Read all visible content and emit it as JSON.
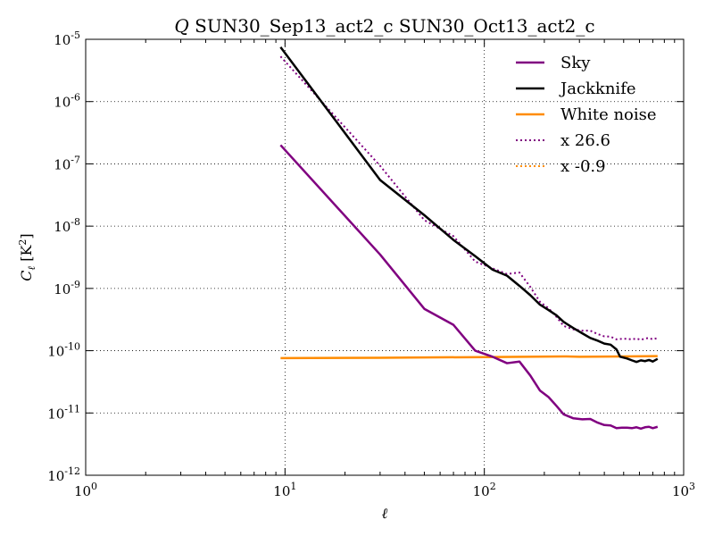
{
  "chart_data": {
    "type": "line",
    "title_prefix": "Q",
    "title_rest": " SUN30_Sep13_act2_c SUN30_Oct13_act2_c",
    "xlabel": "ℓ",
    "ylabel_main": "C",
    "ylabel_sub": "ℓ",
    "ylabel_unit": " [K",
    "ylabel_unit_sup": "2",
    "ylabel_unit_close": "]",
    "x_scale": "log",
    "y_scale": "log",
    "xlim": [
      1,
      1000
    ],
    "ylim": [
      1e-12,
      1e-05
    ],
    "grid": true,
    "legend_position": "top-right",
    "x_ticks": [
      {
        "base": "10",
        "exp": "0",
        "value": 1
      },
      {
        "base": "10",
        "exp": "1",
        "value": 10
      },
      {
        "base": "10",
        "exp": "2",
        "value": 100
      },
      {
        "base": "10",
        "exp": "3",
        "value": 1000
      }
    ],
    "y_ticks": [
      {
        "base": "10",
        "exp": "-12",
        "value": 1e-12
      },
      {
        "base": "10",
        "exp": "-11",
        "value": 1e-11
      },
      {
        "base": "10",
        "exp": "-10",
        "value": 1e-10
      },
      {
        "base": "10",
        "exp": "-9",
        "value": 1e-09
      },
      {
        "base": "10",
        "exp": "-8",
        "value": 1e-08
      },
      {
        "base": "10",
        "exp": "-7",
        "value": 1e-07
      },
      {
        "base": "10",
        "exp": "-6",
        "value": 1e-06
      },
      {
        "base": "10",
        "exp": "-5",
        "value": 1e-05
      }
    ],
    "series": [
      {
        "name": "Sky",
        "color": "#800080",
        "style": "solid",
        "points": [
          [
            9.5,
            2e-07
          ],
          [
            30,
            3.5e-09
          ],
          [
            50,
            4.7e-10
          ],
          [
            70,
            2.6e-10
          ],
          [
            90,
            1e-10
          ],
          [
            110,
            8e-11
          ],
          [
            130,
            6.3e-11
          ],
          [
            150,
            6.7e-11
          ],
          [
            170,
            4e-11
          ],
          [
            190,
            2.3e-11
          ],
          [
            210,
            1.8e-11
          ],
          [
            230,
            1.3e-11
          ],
          [
            250,
            9.5e-12
          ],
          [
            280,
            8.2e-12
          ],
          [
            310,
            7.9e-12
          ],
          [
            340,
            8e-12
          ],
          [
            370,
            7e-12
          ],
          [
            400,
            6.4e-12
          ],
          [
            430,
            6.3e-12
          ],
          [
            460,
            5.7e-12
          ],
          [
            490,
            5.8e-12
          ],
          [
            520,
            5.8e-12
          ],
          [
            550,
            5.7e-12
          ],
          [
            580,
            5.9e-12
          ],
          [
            610,
            5.6e-12
          ],
          [
            640,
            5.9e-12
          ],
          [
            670,
            6e-12
          ],
          [
            700,
            5.7e-12
          ],
          [
            740,
            6e-12
          ]
        ]
      },
      {
        "name": "Jackknife",
        "color": "#000000",
        "style": "solid",
        "points": [
          [
            9.5,
            7.5e-06
          ],
          [
            30,
            5.5e-08
          ],
          [
            50,
            1.5e-08
          ],
          [
            70,
            6e-09
          ],
          [
            90,
            3.3e-09
          ],
          [
            110,
            2e-09
          ],
          [
            130,
            1.6e-09
          ],
          [
            150,
            1.1e-09
          ],
          [
            170,
            7.8e-10
          ],
          [
            190,
            5.5e-10
          ],
          [
            210,
            4.5e-10
          ],
          [
            230,
            3.7e-10
          ],
          [
            250,
            2.9e-10
          ],
          [
            280,
            2.3e-10
          ],
          [
            310,
            1.9e-10
          ],
          [
            340,
            1.6e-10
          ],
          [
            370,
            1.45e-10
          ],
          [
            400,
            1.3e-10
          ],
          [
            430,
            1.25e-10
          ],
          [
            460,
            1.05e-10
          ],
          [
            480,
            8e-11
          ],
          [
            520,
            7.5e-11
          ],
          [
            550,
            7e-11
          ],
          [
            580,
            6.6e-11
          ],
          [
            610,
            7e-11
          ],
          [
            640,
            6.8e-11
          ],
          [
            670,
            7.1e-11
          ],
          [
            700,
            6.7e-11
          ],
          [
            740,
            7.4e-11
          ]
        ]
      },
      {
        "name": "White noise",
        "color": "#ff8c00",
        "style": "solid",
        "points": [
          [
            9.5,
            7.6e-11
          ],
          [
            30,
            7.7e-11
          ],
          [
            100,
            7.9e-11
          ],
          [
            250,
            8.1e-11
          ],
          [
            300,
            8e-11
          ],
          [
            500,
            8.1e-11
          ],
          [
            740,
            8.2e-11
          ]
        ]
      },
      {
        "name": "x 26.6",
        "color": "#800080",
        "style": "dotted",
        "points": [
          [
            9.5,
            5.3e-06
          ],
          [
            30,
            9.3e-08
          ],
          [
            50,
            1.25e-08
          ],
          [
            70,
            6.9e-09
          ],
          [
            90,
            2.7e-09
          ],
          [
            110,
            2.1e-09
          ],
          [
            130,
            1.7e-09
          ],
          [
            150,
            1.8e-09
          ],
          [
            170,
            1.06e-09
          ],
          [
            190,
            6.1e-10
          ],
          [
            210,
            4.8e-10
          ],
          [
            230,
            3.5e-10
          ],
          [
            250,
            2.5e-10
          ],
          [
            280,
            2.2e-10
          ],
          [
            310,
            2.1e-10
          ],
          [
            340,
            2.1e-10
          ],
          [
            370,
            1.85e-10
          ],
          [
            400,
            1.7e-10
          ],
          [
            430,
            1.68e-10
          ],
          [
            460,
            1.52e-10
          ],
          [
            490,
            1.55e-10
          ],
          [
            520,
            1.55e-10
          ],
          [
            550,
            1.52e-10
          ],
          [
            580,
            1.57e-10
          ],
          [
            610,
            1.49e-10
          ],
          [
            640,
            1.57e-10
          ],
          [
            670,
            1.6e-10
          ],
          [
            700,
            1.52e-10
          ],
          [
            740,
            1.6e-10
          ]
        ]
      },
      {
        "name": "x -0.9",
        "color": "#ff8c00",
        "style": "dotted",
        "points": []
      }
    ]
  }
}
